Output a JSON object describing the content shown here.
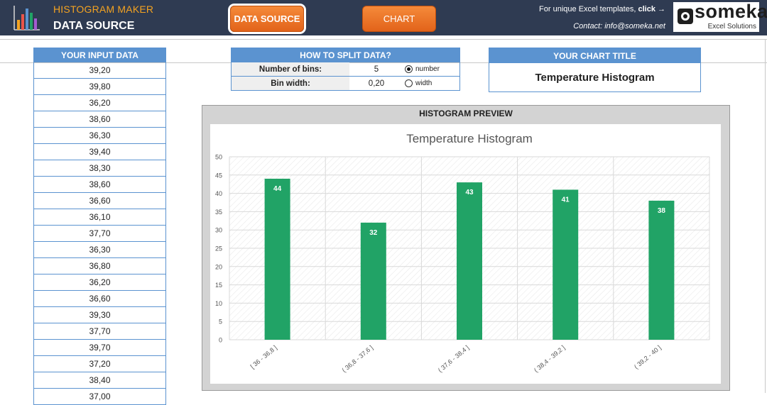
{
  "header": {
    "app_title": "HISTOGRAM MAKER",
    "page_title": "DATA SOURCE",
    "nav": {
      "data_source_label": "DATA SOURCE",
      "chart_label": "CHART"
    },
    "promo_text": "For unique Excel templates,",
    "promo_link": "click →",
    "contact": "Contact: info@someka.net",
    "brand_name": "someka",
    "brand_sub": "Excel Solutions"
  },
  "input_data": {
    "header": "YOUR INPUT DATA",
    "values": [
      "39,20",
      "39,80",
      "36,20",
      "38,60",
      "36,30",
      "39,40",
      "38,30",
      "38,60",
      "36,60",
      "36,10",
      "37,70",
      "36,30",
      "36,80",
      "36,20",
      "36,60",
      "39,30",
      "37,70",
      "39,70",
      "37,20",
      "38,40",
      "37,00"
    ]
  },
  "split": {
    "header": "HOW TO SPLIT DATA?",
    "bins_label": "Number of bins:",
    "bins_value": "5",
    "bins_option": "number",
    "width_label": "Bin width:",
    "width_value": "0,20",
    "width_option": "width",
    "selected": "number"
  },
  "chart_title_box": {
    "header": "YOUR CHART TITLE",
    "value": "Temperature Histogram"
  },
  "preview": {
    "header": "HISTOGRAM PREVIEW"
  },
  "colors": {
    "bar": "#21a366",
    "header_bg": "#2f3b52",
    "accent_blue": "#5b93d0",
    "accent_orange": "#ee7a2c"
  },
  "chart_data": {
    "type": "bar",
    "title": "Temperature Histogram",
    "categories": [
      "[ 36 - 36,8 ]",
      "( 36,8 - 37,6 ]",
      "( 37,6 - 38,4 ]",
      "( 38,4 - 39,2 ]",
      "( 39,2 - 40 ]"
    ],
    "values": [
      44,
      32,
      43,
      41,
      38
    ],
    "ylim": [
      0,
      50
    ],
    "yticks": [
      0,
      5,
      10,
      15,
      20,
      25,
      30,
      35,
      40,
      45,
      50
    ],
    "grid": true,
    "data_labels": true
  }
}
